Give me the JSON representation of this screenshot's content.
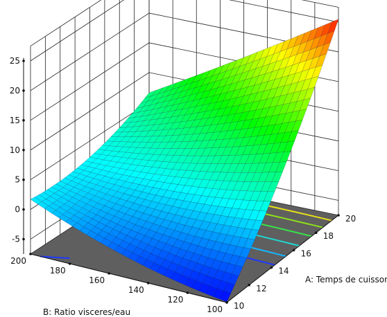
{
  "chart_data": {
    "type": "surface3d",
    "title": "",
    "x_axis": {
      "label": "A: Temps de cuisson",
      "range": [
        10,
        20
      ],
      "ticks": [
        "10",
        "12",
        "14",
        "16",
        "18",
        "20"
      ]
    },
    "y_axis": {
      "label": "B: Ratio visceres/eau",
      "range": [
        100,
        200
      ],
      "ticks": [
        "100",
        "120",
        "140",
        "160",
        "180",
        "200"
      ]
    },
    "z_axis": {
      "label": "",
      "range": [
        -5,
        25
      ],
      "ticks": [
        "-5",
        "0",
        "5",
        "10",
        "15",
        "20",
        "25"
      ]
    },
    "corner_values": [
      {
        "A": 10,
        "B": 200,
        "z": 1.7
      },
      {
        "A": 10,
        "B": 100,
        "z": -7.4
      },
      {
        "A": 20,
        "B": 100,
        "z": 25.5
      },
      {
        "A": 20,
        "B": 200,
        "z": 6.6
      }
    ],
    "floor_color": "#5f5f5f",
    "colormap": [
      "#0000ff",
      "#00ffff",
      "#00ff00",
      "#ffff00",
      "#ff0000"
    ],
    "grid": true
  }
}
